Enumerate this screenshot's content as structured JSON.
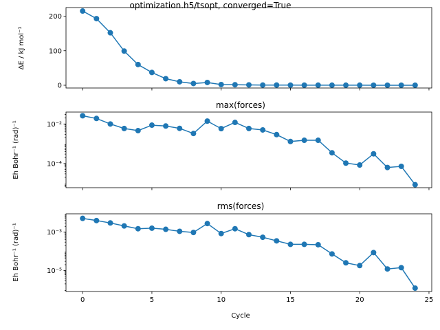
{
  "figure": {
    "xlabel": "Cycle",
    "x_ticks": [
      0,
      5,
      10,
      15,
      20,
      25
    ]
  },
  "chart_data": [
    {
      "type": "line",
      "title": "optimization.h5/tsopt, converged=True",
      "xlabel": "",
      "ylabel": "ΔE / kJ mol⁻¹",
      "yscale": "linear",
      "ylim": [
        -8,
        225
      ],
      "xlim": [
        -1.2,
        25.2
      ],
      "y_ticks": [
        0,
        100,
        200
      ],
      "y_tick_labels": [
        "0",
        "100",
        "200"
      ],
      "marker": "circle",
      "color": "#1f77b4",
      "x": [
        0,
        1,
        2,
        3,
        4,
        5,
        6,
        7,
        8,
        9,
        10,
        11,
        12,
        13,
        14,
        15,
        16,
        17,
        18,
        19,
        20,
        21,
        22,
        23,
        24
      ],
      "values": [
        215,
        193,
        152,
        99,
        60,
        37,
        19,
        10,
        5,
        8,
        2,
        1.5,
        1,
        0.5,
        0.5,
        0.3,
        0.2,
        0.2,
        0.1,
        0.1,
        0.1,
        0.05,
        0.05,
        0.02,
        0
      ]
    },
    {
      "type": "line",
      "title": "max(forces)",
      "xlabel": "",
      "ylabel": "Eh Bohr⁻¹ (rad)⁻¹",
      "yscale": "log",
      "ylim": [
        6e-06,
        0.04
      ],
      "xlim": [
        -1.2,
        25.2
      ],
      "y_ticks": [
        0.0001,
        0.01
      ],
      "y_tick_labels": [
        "10⁻⁴",
        "10⁻²"
      ],
      "marker": "circle",
      "color": "#1f77b4",
      "x": [
        0,
        1,
        2,
        3,
        4,
        5,
        6,
        7,
        8,
        9,
        10,
        11,
        12,
        13,
        14,
        15,
        16,
        17,
        18,
        19,
        20,
        21,
        22,
        23,
        24
      ],
      "values": [
        0.026,
        0.019,
        0.01,
        0.0059,
        0.0046,
        0.0087,
        0.0079,
        0.006,
        0.0033,
        0.014,
        0.0058,
        0.012,
        0.0059,
        0.005,
        0.0029,
        0.0013,
        0.0015,
        0.0015,
        0.00035,
        0.000105,
        8.4e-05,
        0.00031,
        6.3e-05,
        7.2e-05,
        8.5e-06
      ]
    },
    {
      "type": "line",
      "title": "rms(forces)",
      "xlabel": "Cycle",
      "ylabel": "Eh Bohr⁻¹ (rad)⁻¹",
      "yscale": "log",
      "ylim": [
        8e-07,
        0.009
      ],
      "xlim": [
        -1.2,
        25.2
      ],
      "y_ticks": [
        1e-05,
        0.001
      ],
      "y_tick_labels": [
        "10⁻⁵",
        "10⁻³"
      ],
      "marker": "circle",
      "color": "#1f77b4",
      "x": [
        0,
        1,
        2,
        3,
        4,
        5,
        6,
        7,
        8,
        9,
        10,
        11,
        12,
        13,
        14,
        15,
        16,
        17,
        18,
        19,
        20,
        21,
        22,
        23,
        24
      ],
      "values": [
        0.0052,
        0.004,
        0.003,
        0.0021,
        0.0015,
        0.0016,
        0.0014,
        0.0011,
        0.00096,
        0.0028,
        0.00084,
        0.0015,
        0.00074,
        0.00054,
        0.00035,
        0.00023,
        0.00023,
        0.00022,
        7.3e-05,
        2.5e-05,
        1.8e-05,
        8.6e-05,
        1.2e-05,
        1.4e-05,
        1.2e-06
      ]
    }
  ]
}
